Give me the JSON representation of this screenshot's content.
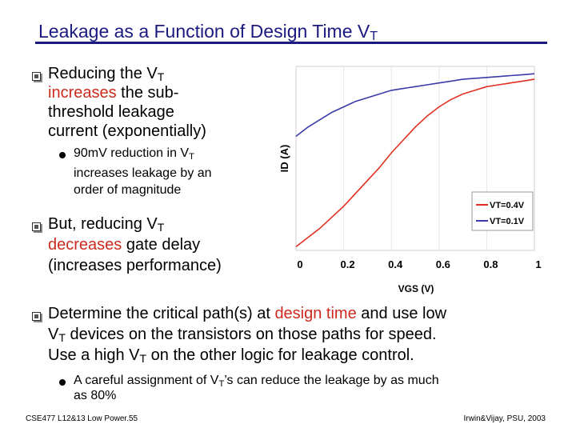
{
  "slide": {
    "title_main": "Leakage as a Function of Design Time V",
    "title_sub": "T",
    "b1": {
      "l1a": "Reducing the V",
      "l1b": "T",
      "l2a": "increases",
      "l2b": " the sub-",
      "l3": "threshold leakage",
      "l4": "current (exponentially)"
    },
    "b1s": {
      "l1a": "90mV reduction in V",
      "l1b": "T",
      "l2": "increases leakage by an",
      "l3": "order of magnitude"
    },
    "b2": {
      "l1a": "But, reducing V",
      "l1b": "T",
      "l2a": "decreases",
      "l2b": " gate delay",
      "l3": "(increases performance)"
    },
    "b3": {
      "l1a": "Determine the critical path(s) at ",
      "l1b": "design time",
      "l1c": " and use low",
      "l2a": "V",
      "l2b": "T",
      "l2c": " devices on the transistors on those paths for speed.",
      "l3a": "Use a high V",
      "l3b": "T",
      "l3c": " on the other logic for leakage control."
    },
    "b3s": {
      "l1a": "A careful assignment of V",
      "l1b": "T",
      "l1c": "’s can reduce the leakage by as much",
      "l2": "as 80%"
    }
  },
  "footer": {
    "left": "CSE477 L12&13 Low Power.55",
    "right": "Irwin&Vijay, PSU, 2003"
  },
  "colors": {
    "title": "#1a1a80",
    "accent_text": "#cc2a1e",
    "vt04": "#e03020",
    "vt01": "#3a3aa8"
  },
  "chart_data": {
    "type": "line",
    "xlabel": "VGS (V)",
    "ylabel": "ID (A)",
    "xlim": [
      0,
      1
    ],
    "x_ticks": [
      "0",
      "0.2",
      "0.4",
      "0.6",
      "0.8",
      "1"
    ],
    "legend_position": "bottom-right",
    "series": [
      {
        "name": "VT=0.4V",
        "color": "#e03020",
        "x": [
          0,
          0.05,
          0.1,
          0.15,
          0.2,
          0.25,
          0.3,
          0.35,
          0.4,
          0.45,
          0.5,
          0.55,
          0.6,
          0.65,
          0.7,
          0.75,
          0.8,
          0.85,
          0.9,
          0.95,
          1.0
        ],
        "y": [
          0.02,
          0.07,
          0.12,
          0.18,
          0.24,
          0.31,
          0.38,
          0.45,
          0.53,
          0.6,
          0.67,
          0.73,
          0.78,
          0.82,
          0.85,
          0.87,
          0.89,
          0.9,
          0.91,
          0.92,
          0.93
        ]
      },
      {
        "name": "VT=0.1V",
        "color": "#3a3aa8",
        "x": [
          0,
          0.05,
          0.1,
          0.15,
          0.2,
          0.25,
          0.3,
          0.35,
          0.4,
          0.45,
          0.5,
          0.55,
          0.6,
          0.65,
          0.7,
          0.75,
          0.8,
          0.85,
          0.9,
          0.95,
          1.0
        ],
        "y": [
          0.62,
          0.67,
          0.71,
          0.75,
          0.78,
          0.81,
          0.83,
          0.85,
          0.87,
          0.88,
          0.89,
          0.9,
          0.91,
          0.92,
          0.93,
          0.935,
          0.94,
          0.945,
          0.95,
          0.955,
          0.96
        ]
      }
    ]
  }
}
